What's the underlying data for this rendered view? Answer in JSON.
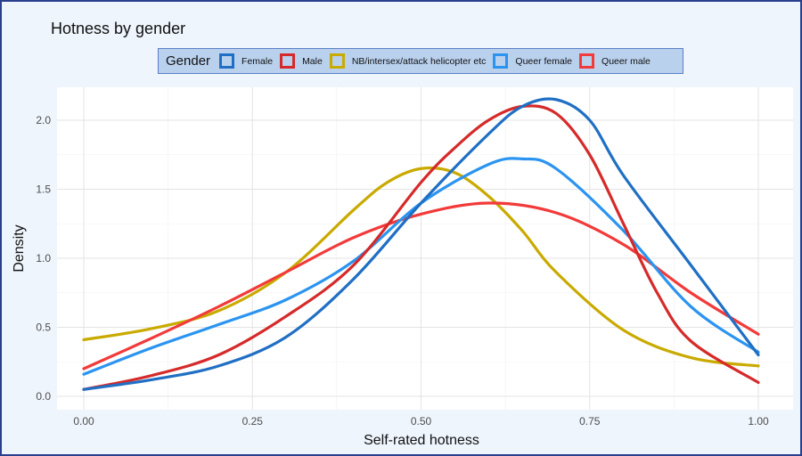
{
  "chart_data": {
    "type": "line",
    "title": "Hotness by gender",
    "xlabel": "Self-rated hotness",
    "ylabel": "Density",
    "xlim": [
      0,
      1
    ],
    "ylim": [
      0,
      2.2
    ],
    "x_ticks": [
      "0.00",
      "0.25",
      "0.50",
      "0.75",
      "1.00"
    ],
    "x_tick_values": [
      0,
      0.25,
      0.5,
      0.75,
      1.0
    ],
    "y_ticks": [
      "0.0",
      "0.5",
      "1.0",
      "1.5",
      "2.0"
    ],
    "y_tick_values": [
      0,
      0.5,
      1.0,
      1.5,
      2.0
    ],
    "grid": true,
    "legend": {
      "title": "Gender",
      "placement": "top"
    },
    "series": [
      {
        "name": "Female",
        "color": "#1f6fc4",
        "x": [
          0,
          0.1,
          0.2,
          0.3,
          0.4,
          0.5,
          0.6,
          0.65,
          0.7,
          0.75,
          0.8,
          0.9,
          1.0
        ],
        "y": [
          0.05,
          0.12,
          0.22,
          0.43,
          0.85,
          1.4,
          1.9,
          2.1,
          2.15,
          2.0,
          1.6,
          0.95,
          0.3
        ]
      },
      {
        "name": "Male",
        "color": "#d62a2a",
        "x": [
          0,
          0.1,
          0.2,
          0.3,
          0.4,
          0.5,
          0.55,
          0.6,
          0.65,
          0.7,
          0.75,
          0.8,
          0.85,
          0.9,
          1.0
        ],
        "y": [
          0.05,
          0.15,
          0.3,
          0.58,
          0.95,
          1.55,
          1.8,
          2.0,
          2.1,
          2.05,
          1.75,
          1.25,
          0.75,
          0.4,
          0.1
        ]
      },
      {
        "name": "NB/intersex/attack helicopter etc",
        "color": "#c9aa00",
        "x": [
          0,
          0.1,
          0.2,
          0.3,
          0.4,
          0.45,
          0.5,
          0.55,
          0.6,
          0.65,
          0.7,
          0.8,
          0.9,
          1.0
        ],
        "y": [
          0.41,
          0.49,
          0.62,
          0.9,
          1.35,
          1.55,
          1.65,
          1.62,
          1.45,
          1.2,
          0.9,
          0.48,
          0.28,
          0.22
        ]
      },
      {
        "name": "Queer female",
        "color": "#2b94f0",
        "x": [
          0,
          0.1,
          0.2,
          0.3,
          0.4,
          0.5,
          0.6,
          0.65,
          0.7,
          0.8,
          0.9,
          1.0
        ],
        "y": [
          0.16,
          0.35,
          0.52,
          0.7,
          0.98,
          1.4,
          1.68,
          1.72,
          1.65,
          1.2,
          0.65,
          0.32
        ]
      },
      {
        "name": "Queer male",
        "color": "#f23a3a",
        "x": [
          0,
          0.1,
          0.2,
          0.3,
          0.4,
          0.5,
          0.6,
          0.7,
          0.8,
          0.9,
          1.0
        ],
        "y": [
          0.2,
          0.42,
          0.65,
          0.9,
          1.15,
          1.32,
          1.4,
          1.33,
          1.1,
          0.75,
          0.45
        ]
      }
    ]
  }
}
